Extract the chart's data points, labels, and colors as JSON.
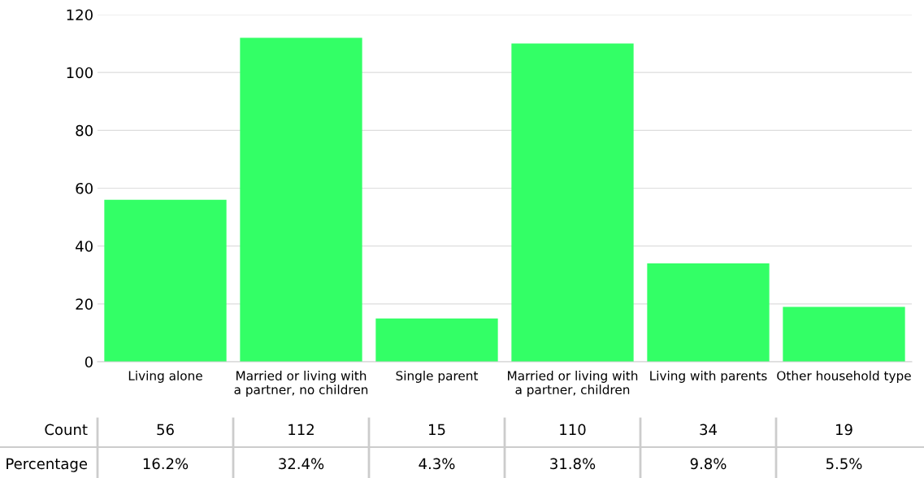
{
  "chart_data": {
    "type": "bar",
    "categories": [
      "Living alone",
      "Married or living with\na partner, no children",
      "Single parent",
      "Married or living with\na partner, children",
      "Living with parents",
      "Other household type"
    ],
    "values": [
      56,
      112,
      15,
      110,
      34,
      19
    ],
    "color": "#33ff66",
    "ylim": [
      0,
      120
    ],
    "yticks": [
      0,
      20,
      40,
      60,
      80,
      100,
      120
    ],
    "grid": "y",
    "value_labels": [
      "56",
      "112",
      "15",
      "110",
      "34",
      "19"
    ],
    "annotations": [
      "Count",
      "Percentage",
      "16.2%",
      "32.4%",
      "4.3%",
      "31.8%",
      "9.8%",
      "5.5%"
    ]
  }
}
